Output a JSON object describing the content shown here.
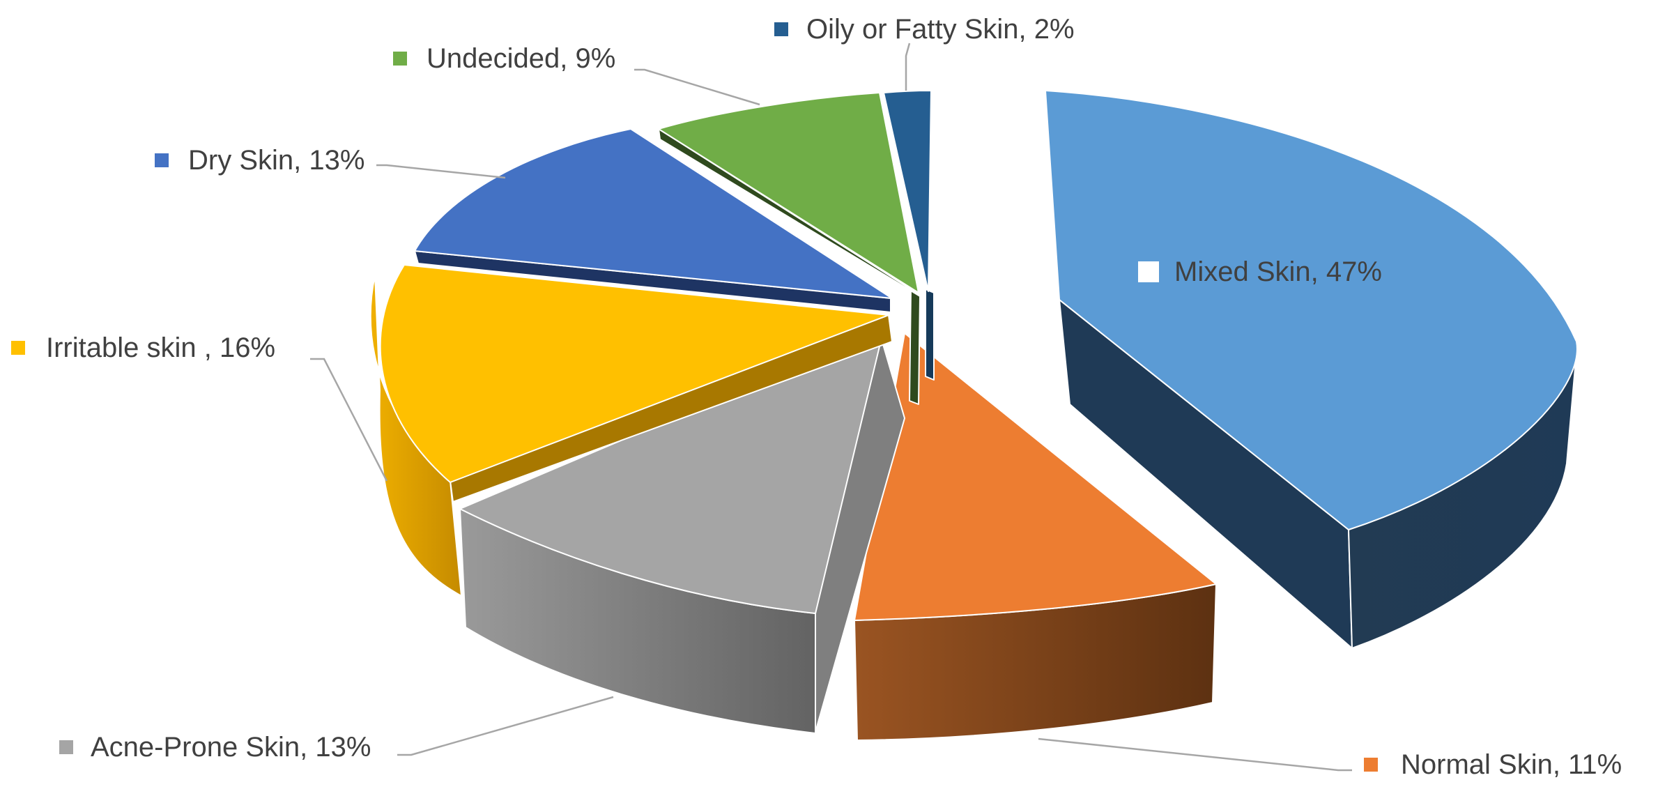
{
  "chart_data": {
    "type": "pie",
    "style": "3d-exploded",
    "title": "",
    "legend": "none",
    "slices": [
      {
        "label": "Mixed Skin, 47%",
        "value": 47,
        "color": "#5b9bd5",
        "side": "#223b53",
        "label_color": "#595959"
      },
      {
        "label": "Normal Skin, 11%",
        "value": 11,
        "color": "#ed7d31",
        "side": "#8a4a1f",
        "label_color": "#404040"
      },
      {
        "label": "Acne-Prone Skin, 13%",
        "value": 13,
        "color": "#a5a5a5",
        "side": "#7a7a7a",
        "label_color": "#404040"
      },
      {
        "label": "Irritable skin , 16%",
        "value": 16,
        "color": "#ffc000",
        "side": "#d49a00",
        "label_color": "#404040"
      },
      {
        "label": "Dry Skin, 13%",
        "value": 13,
        "color": "#4472c4",
        "side": "#1e3463",
        "label_color": "#404040"
      },
      {
        "label": "Undecided, 9%",
        "value": 9,
        "color": "#70ad47",
        "side": "#2f4a1e",
        "label_color": "#404040"
      },
      {
        "label": "Oily or Fatty Skin, 2%",
        "value": 2,
        "color": "#255e91",
        "side": "#163a5a",
        "label_color": "#404040"
      }
    ]
  }
}
